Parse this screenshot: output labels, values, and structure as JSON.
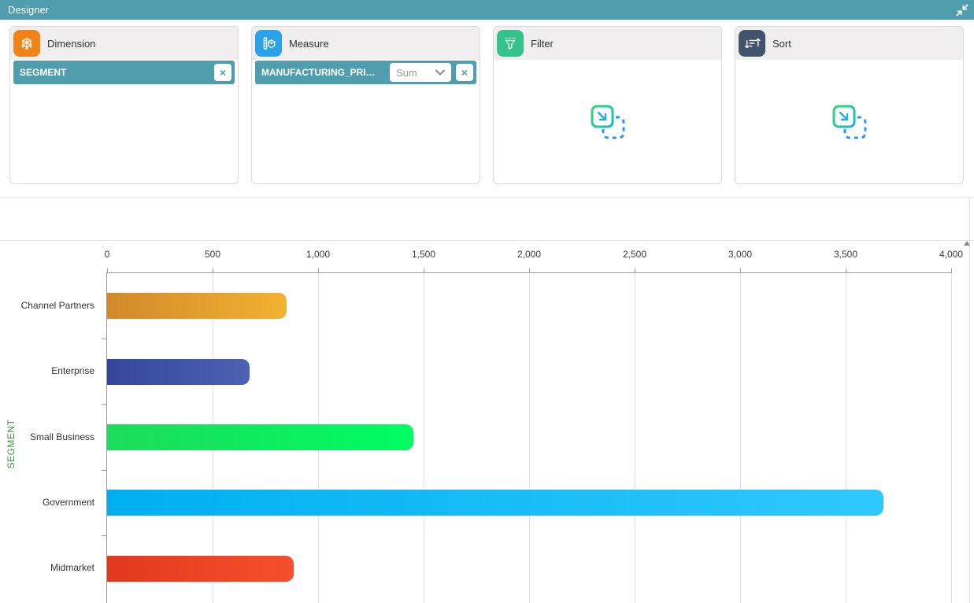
{
  "header": {
    "title": "Designer",
    "bg_color": "#4f9dad",
    "collapse_icon": "collapse-arrows"
  },
  "accent": {
    "chip_bg": "#4f9dad",
    "panel_header_bg": "#f0eeee"
  },
  "panels": [
    {
      "key": "dimension",
      "label": "Dimension",
      "icon": "dimension-cube-icon",
      "icon_bg": "#f08418",
      "chip": {
        "label": "SEGMENT",
        "close_icon": "×"
      }
    },
    {
      "key": "measure",
      "label": "Measure",
      "icon": "measure-ruler-icon",
      "icon_bg": "#2ba1e8",
      "chip": {
        "label": "MANUFACTURING_PRI…",
        "aggregation": "Sum",
        "close_icon": "×"
      }
    },
    {
      "key": "filter",
      "label": "Filter",
      "icon": "filter-funnel-icon",
      "icon_bg": "#35c28f",
      "empty_icon": "drag-drop-target-icon"
    },
    {
      "key": "sort",
      "label": "Sort",
      "icon": "sort-arrows-icon",
      "icon_bg": "#41546b",
      "empty_icon": "drag-drop-target-icon"
    }
  ],
  "chart_data": {
    "type": "bar",
    "orientation": "horizontal",
    "ylabel": "SEGMENT",
    "ylabel_color": "#3f9243",
    "categories": [
      "Channel Partners",
      "Enterprise",
      "Small Business",
      "Government",
      "Midmarket"
    ],
    "values": [
      850,
      675,
      1450,
      3680,
      885
    ],
    "xlim": [
      0,
      4000
    ],
    "xticks": [
      0,
      500,
      1000,
      1500,
      2000,
      2500,
      3000,
      3500,
      4000
    ],
    "xtick_labels": [
      "0",
      "500",
      "1,000",
      "1,500",
      "2,000",
      "2,500",
      "3,000",
      "3,500",
      "4,000"
    ],
    "grid": true,
    "axis_position": "top",
    "bar_gradients": [
      [
        "#d1892a",
        "#f2b231"
      ],
      [
        "#36479b",
        "#4e62b4"
      ],
      [
        "#1ddb5c",
        "#00fc63"
      ],
      [
        "#00aff0",
        "#2fc8fd"
      ],
      [
        "#e13a1e",
        "#f5502d"
      ]
    ]
  }
}
